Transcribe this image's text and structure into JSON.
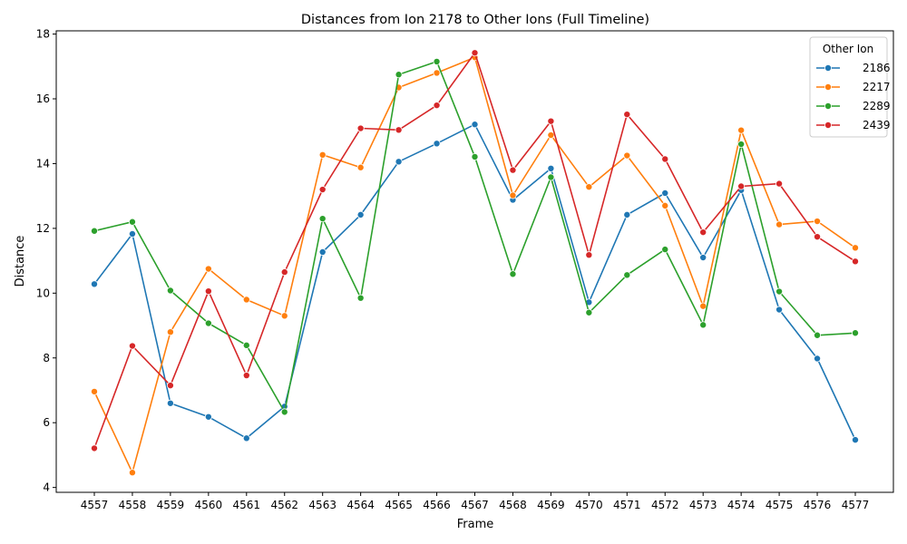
{
  "chart_data": {
    "type": "line",
    "title": "Distances from Ion 2178 to Other Ions (Full Timeline)",
    "xlabel": "Frame",
    "ylabel": "Distance",
    "ylim": [
      3.85,
      18.1
    ],
    "yticks": [
      4,
      6,
      8,
      10,
      12,
      14,
      16,
      18
    ],
    "grid": false,
    "legend": {
      "title": "Other Ion",
      "placement": "top-right"
    },
    "categories": [
      "4557",
      "4558",
      "4559",
      "4560",
      "4561",
      "4562",
      "4563",
      "4564",
      "4565",
      "4566",
      "4567",
      "4568",
      "4569",
      "4570",
      "4571",
      "4572",
      "4573",
      "4574",
      "4575",
      "4576",
      "4577"
    ],
    "series": [
      {
        "name": "2186",
        "color": "#1f77b4",
        "values": [
          10.28,
          11.83,
          6.6,
          6.18,
          5.52,
          6.5,
          11.27,
          12.42,
          14.06,
          14.62,
          15.21,
          12.88,
          13.85,
          9.72,
          12.42,
          13.09,
          11.1,
          13.18,
          9.49,
          7.98,
          5.47
        ]
      },
      {
        "name": "2217",
        "color": "#ff7f0e",
        "values": [
          6.96,
          4.46,
          8.8,
          10.75,
          9.8,
          9.3,
          14.27,
          13.88,
          16.35,
          16.8,
          17.28,
          13.02,
          14.88,
          13.28,
          14.25,
          12.7,
          9.6,
          15.03,
          12.12,
          12.22,
          11.4
        ]
      },
      {
        "name": "2289",
        "color": "#2ca02c",
        "values": [
          11.92,
          12.2,
          10.08,
          9.07,
          8.39,
          6.33,
          12.3,
          9.85,
          16.75,
          17.15,
          14.21,
          10.59,
          13.58,
          9.4,
          10.56,
          11.35,
          9.02,
          14.6,
          10.05,
          8.7,
          8.77
        ]
      },
      {
        "name": "2439",
        "color": "#d62728",
        "values": [
          5.21,
          8.37,
          7.15,
          10.06,
          7.46,
          10.65,
          13.2,
          15.09,
          15.04,
          15.8,
          17.42,
          13.8,
          15.31,
          11.18,
          15.52,
          14.14,
          11.88,
          13.3,
          13.38,
          11.74,
          10.98
        ]
      }
    ]
  }
}
